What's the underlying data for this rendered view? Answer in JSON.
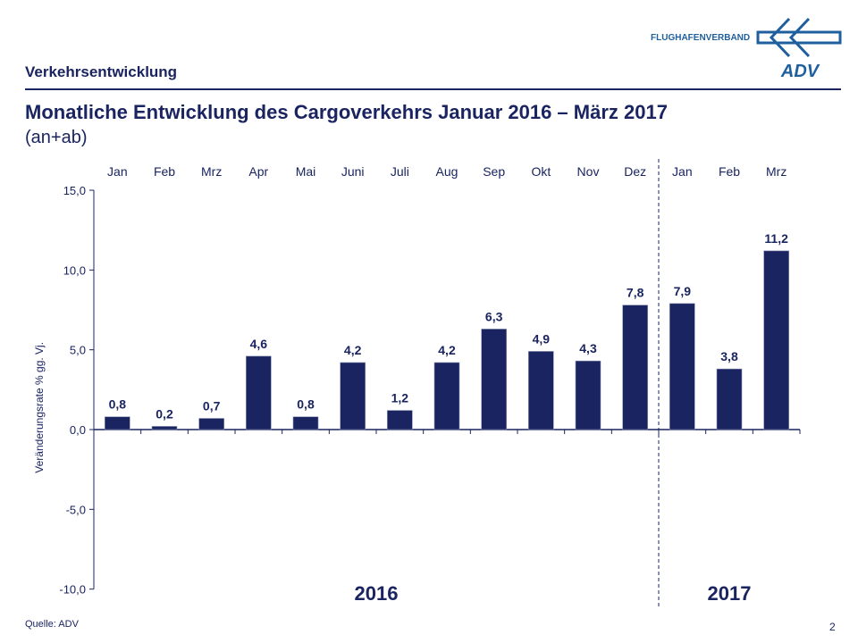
{
  "header": {
    "section": "Verkehrsentwicklung",
    "title": "Monatliche Entwicklung des Cargoverkehrs  Januar 2016 – März 2017",
    "subtitle": "(an+ab)"
  },
  "logo": {
    "text": "FLUGHAFENVERBAND",
    "mark": "ADV",
    "color": "#1f5f9e"
  },
  "footer": {
    "source": "Quelle: ADV",
    "page": "2"
  },
  "chart_data": {
    "type": "bar",
    "categories": [
      "Jan",
      "Feb",
      "Mrz",
      "Apr",
      "Mai",
      "Juni",
      "Juli",
      "Aug",
      "Sep",
      "Okt",
      "Nov",
      "Dez",
      "Jan",
      "Feb",
      "Mrz"
    ],
    "values": [
      0.8,
      0.2,
      0.7,
      4.6,
      0.8,
      4.2,
      1.2,
      4.2,
      6.3,
      4.9,
      4.3,
      7.8,
      7.9,
      3.8,
      11.2
    ],
    "data_labels": [
      "0,8",
      "0,2",
      "0,7",
      "4,6",
      "0,8",
      "4,2",
      "1,2",
      "4,2",
      "6,3",
      "4,9",
      "4,3",
      "7,8",
      "7,9",
      "3,8",
      "11,2"
    ],
    "ylabel": "Veränderungsrate  % gg. Vj.",
    "ylim": [
      -10,
      15
    ],
    "yticks": [
      "-10,0",
      "-5,0",
      "0,0",
      "5,0",
      "10,0",
      "15,0"
    ],
    "ytick_values": [
      -10,
      -5,
      0,
      5,
      10,
      15
    ],
    "groups": [
      {
        "label": "2016",
        "from": 0,
        "to": 11
      },
      {
        "label": "2017",
        "from": 12,
        "to": 14
      }
    ],
    "bar_color": "#1a2460",
    "grid": false,
    "category_axis_position": "top"
  }
}
